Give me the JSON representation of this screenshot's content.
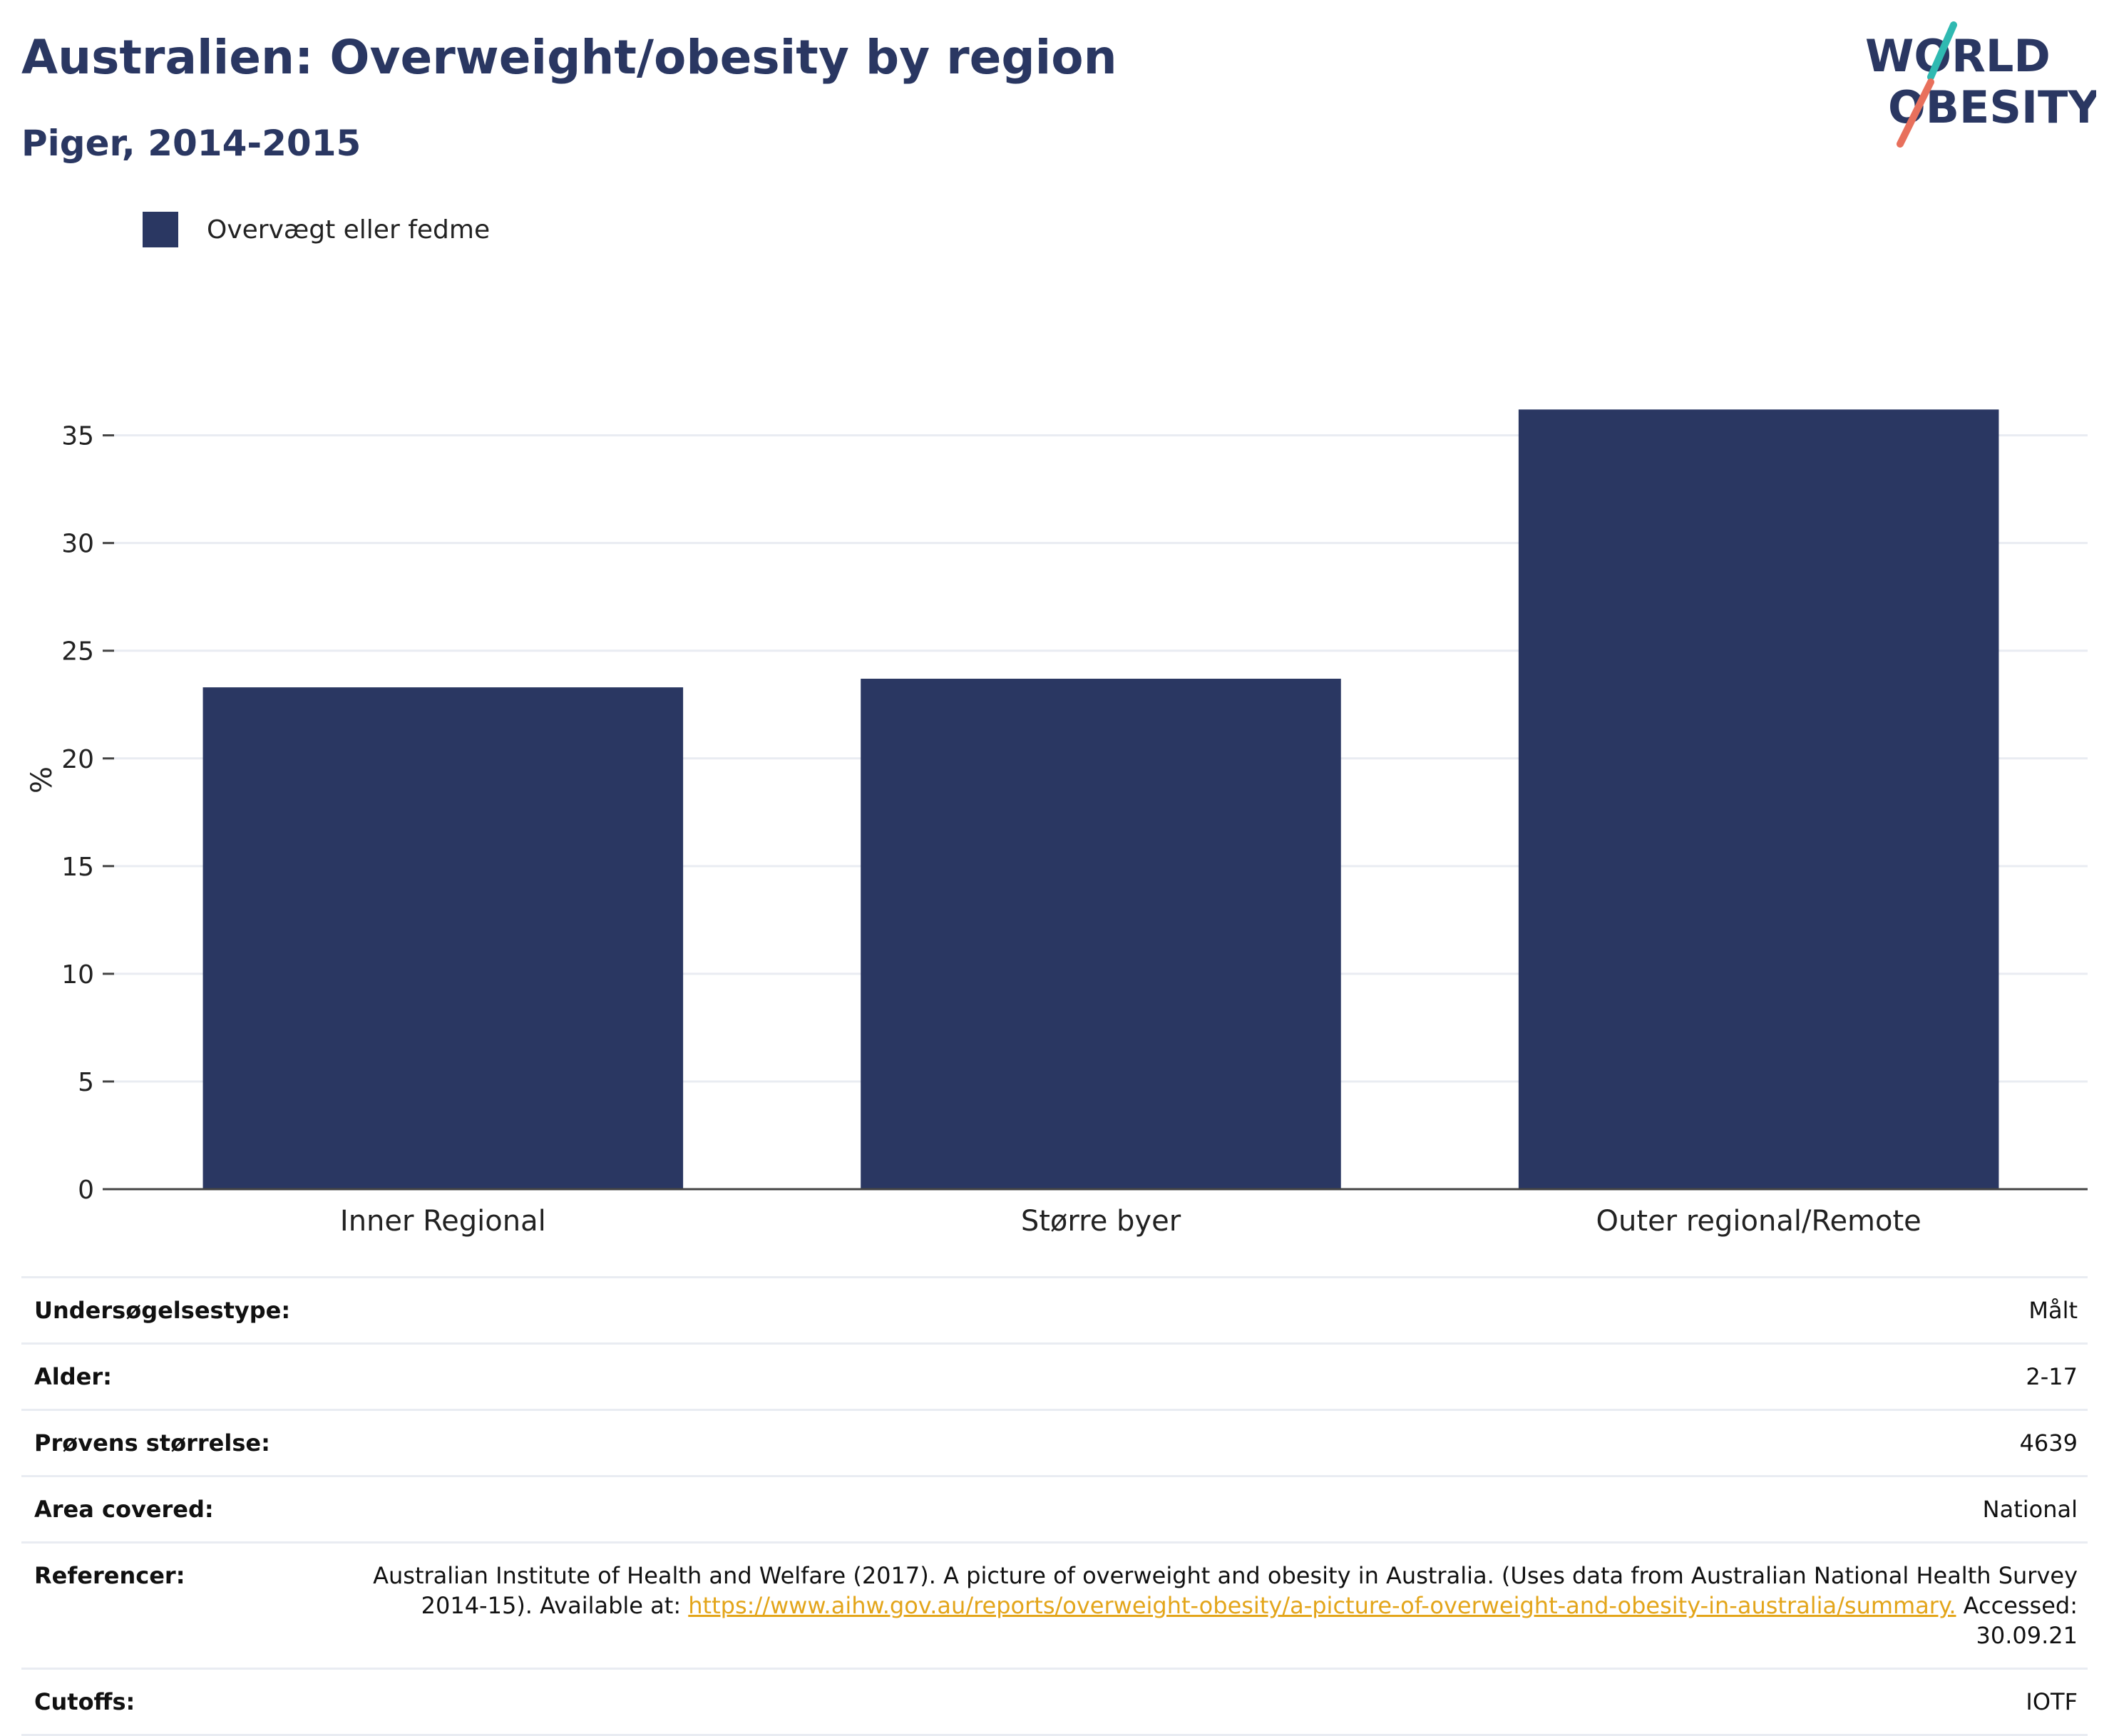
{
  "title": "Australien: Overweight/obesity by region",
  "subtitle": "Piger, 2014-2015",
  "logo": {
    "line1": "WORLD",
    "line2": "OBESITY",
    "accent_colors": [
      "#2fb9b1",
      "#e8705c"
    ]
  },
  "chart_data": {
    "type": "bar",
    "categories": [
      "Inner Regional",
      "Større byer",
      "Outer regional/Remote"
    ],
    "series": [
      {
        "name": "Overvægt eller fedme",
        "values": [
          23.3,
          23.7,
          36.2
        ],
        "color": "#2a3762"
      }
    ],
    "title": "Australien: Overweight/obesity by region",
    "subtitle": "Piger, 2014-2015",
    "xlabel": "",
    "ylabel": "%",
    "ylim": [
      0,
      38
    ],
    "yticks": [
      0,
      5,
      10,
      15,
      20,
      25,
      30,
      35
    ],
    "grid": true,
    "legend": "top-left"
  },
  "info": {
    "survey_type_label": "Undersøgelsestype:",
    "survey_type_value": "Målt",
    "age_label": "Alder:",
    "age_value": "2-17",
    "sample_label": "Prøvens størrelse:",
    "sample_value": "4639",
    "area_label": "Area covered:",
    "area_value": "National",
    "references_label": "Referencer:",
    "references_text1": "Australian Institute of Health and Welfare (2017). A picture of overweight and obesity in Australia. (Uses data from Australian National Health Survey 2014-15). Available at: ",
    "references_link": "https://www.aihw.gov.au/reports/overweight-obesity/a-picture-of-overweight-and-obesity-in-australia/summary.",
    "references_text2": " Accessed: 30.09.21",
    "cutoffs_label": "Cutoffs:",
    "cutoffs_value": "IOTF"
  }
}
